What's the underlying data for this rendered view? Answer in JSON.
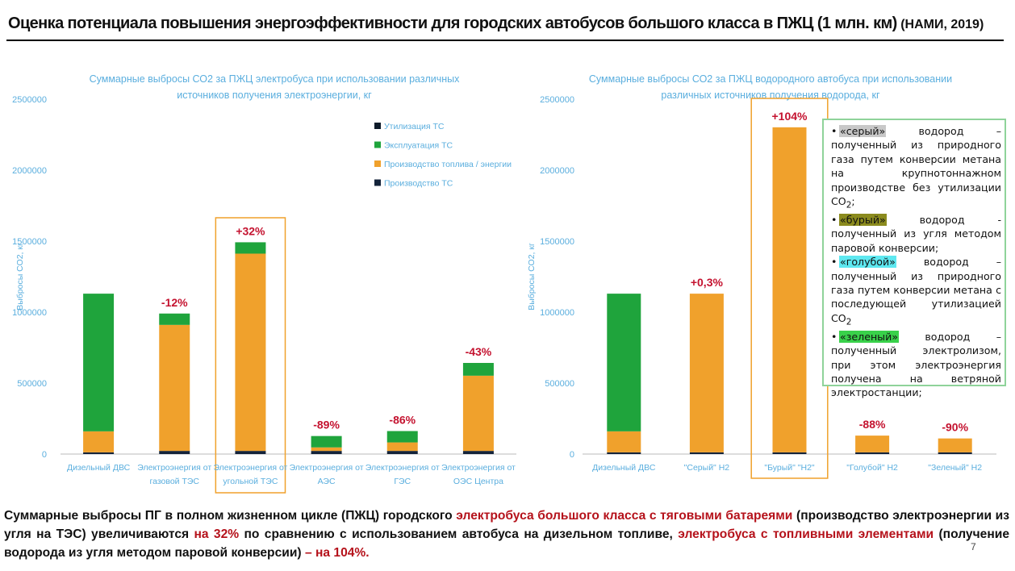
{
  "header": {
    "title": "Оценка потенциала повышения энергоэффективности для городских автобусов большого класса в ПЖЦ (1 млн. км)",
    "source": "(НАМИ, 2019)"
  },
  "colors": {
    "utilization": "#0d1b2a",
    "operation": "#1fa43c",
    "fuel_production": "#f0a12c",
    "vehicle_production": "#14233a",
    "axis_text": "#5aaede",
    "highlight_box": "#f0a12c",
    "annotation": "#c4122f",
    "grey_h2": "#c8c8c8",
    "brown_h2": "#8b8b1e",
    "blue_h2": "#5ee8f0",
    "green_h2": "#39d14a"
  },
  "chart_data": [
    {
      "type": "bar",
      "stacked": true,
      "title_lines": [
        "Суммарные выбросы СО2 за ПЖЦ электробуса при использовании различных",
        "источников получения электроэнергии, кг"
      ],
      "ylabel": "Выбросы СО2, кг",
      "ylim": [
        0,
        2500000
      ],
      "yticks": [
        0,
        500000,
        1000000,
        1500000,
        2000000,
        2500000
      ],
      "ytick_labels": [
        "0",
        "500000",
        "1000000",
        "1500000",
        "2000000",
        "2500000"
      ],
      "categories": [
        [
          "Дизельный ДВС"
        ],
        [
          "Электроэнергия от",
          "газовой ТЭС"
        ],
        [
          "Электроэнергия от",
          "угольной ТЭС"
        ],
        [
          "Электроэнергия от",
          "АЭС"
        ],
        [
          "Электроэнергия от",
          "ГЭС"
        ],
        [
          "Электроэнергия от",
          "ОЭС Центра"
        ]
      ],
      "series": [
        {
          "name": "Производство ТС",
          "color_key": "vehicle_production",
          "values": [
            12000,
            22000,
            22000,
            22000,
            22000,
            22000
          ]
        },
        {
          "name": "Производство топлива / энергии",
          "color_key": "fuel_production",
          "values": [
            148000,
            888000,
            1390000,
            25000,
            60000,
            530000
          ]
        },
        {
          "name": "Эксплуатация ТС",
          "color_key": "operation",
          "values": [
            970000,
            80000,
            80000,
            80000,
            80000,
            90000
          ]
        },
        {
          "name": "Утилизация ТС",
          "color_key": "utilization",
          "values": [
            0,
            0,
            0,
            0,
            0,
            0
          ]
        }
      ],
      "legend_order": [
        "Утилизация ТС",
        "Эксплуатация ТС",
        "Производство топлива / энергии",
        "Производство ТС"
      ],
      "legend_position": "top-right",
      "annotations": [
        "",
        "-12%",
        "+32%",
        "-89%",
        "-86%",
        "-43%"
      ],
      "highlight_index": 2
    },
    {
      "type": "bar",
      "stacked": true,
      "title_lines": [
        "Суммарные выбросы СО2 за ПЖЦ водородного автобуса при использовании",
        "различных источников получения водорода, кг"
      ],
      "ylabel": "Выбросы СО2, кг",
      "ylim": [
        0,
        2500000
      ],
      "yticks": [
        0,
        500000,
        1000000,
        1500000,
        2000000,
        2500000
      ],
      "ytick_labels": [
        "0",
        "500000",
        "1000000",
        "1500000",
        "2000000",
        "2500000"
      ],
      "categories": [
        [
          "Дизельный ДВС"
        ],
        [
          "\"Серый\" Н2"
        ],
        [
          "\"Бурый\" \"Н2\""
        ],
        [
          "\"Голубой\" Н2"
        ],
        [
          "\"Зеленый\" Н2"
        ]
      ],
      "series": [
        {
          "name": "Производство ТС",
          "color_key": "vehicle_production",
          "values": [
            12000,
            12000,
            12000,
            12000,
            12000
          ]
        },
        {
          "name": "Производство топлива / энергии",
          "color_key": "fuel_production",
          "values": [
            148000,
            1118000,
            2290000,
            118000,
            98000
          ]
        },
        {
          "name": "Эксплуатация ТС",
          "color_key": "operation",
          "values": [
            970000,
            0,
            0,
            0,
            0
          ]
        },
        {
          "name": "Утилизация ТС",
          "color_key": "utilization",
          "values": [
            0,
            0,
            0,
            0,
            0
          ]
        }
      ],
      "annotations": [
        "",
        "+0,3%",
        "+104%",
        "-88%",
        "-90%"
      ],
      "highlight_index": 2
    }
  ],
  "info_box": {
    "items": [
      {
        "bullet": "•",
        "tag": "«серый»",
        "tag_color_key": "grey_h2",
        "text_before_sub": " водород – полученный из природного газа путем конверсии метана на крупнотоннажном производстве без утилизации СО",
        "sub": "2",
        "text_after_sub": ";"
      },
      {
        "bullet": "•",
        "tag": "«бурый»",
        "tag_color_key": "brown_h2",
        "text_before_sub": " водород - полученный из угля методом паровой конверсии;",
        "sub": "",
        "text_after_sub": ""
      },
      {
        "bullet": "•",
        "tag": "«голубой»",
        "tag_color_key": "blue_h2",
        "text_before_sub": " водород – полученный из природного газа путем конверсии метана с последующей утилизацией СО",
        "sub": "2",
        "text_after_sub": ""
      },
      {
        "bullet": "•",
        "tag": "«зеленый»",
        "tag_color_key": "green_h2",
        "text_before_sub": " водород – полученный электролизом, при этом электроэнергия получена на ветряной электростанции;",
        "sub": "",
        "text_after_sub": ""
      }
    ]
  },
  "footer": {
    "part1": "Суммарные выбросы ПГ в полном жизненном цикле (ПЖЦ) городского ",
    "part2": "электробуса большого класса с тяговыми батареями",
    "part3": " (производство электроэнергии из угля на ТЭС) увеличиваются ",
    "part4": "на 32%",
    "part5": " по сравнению с использованием автобуса на дизельном топливе, ",
    "part6": "электробуса с топливными элементами",
    "part7": " (получение водорода из угля методом паровой конверсии) ",
    "part8": "– на 104%.",
    "page_number": "7"
  }
}
